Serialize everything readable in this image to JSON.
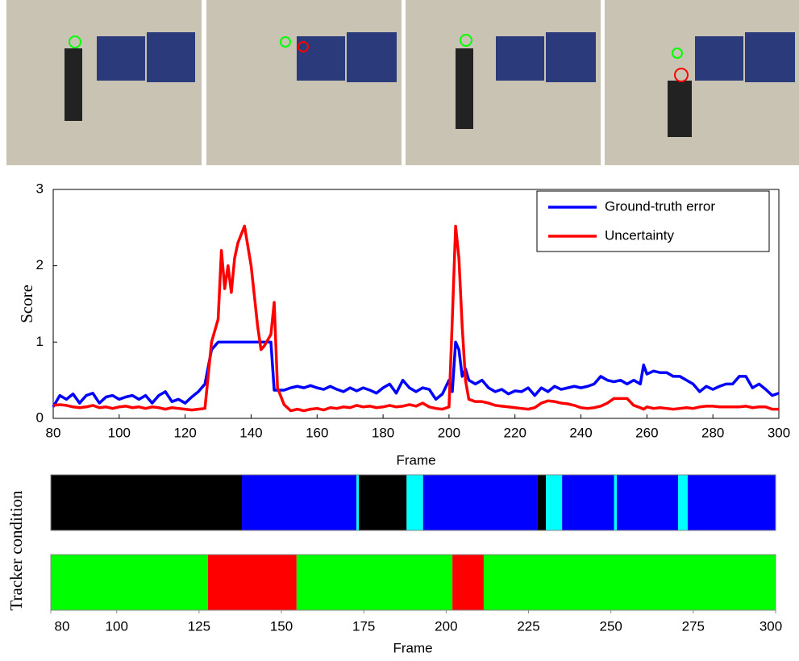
{
  "chart_data": [
    {
      "type": "line",
      "xlabel": "Frame",
      "ylabel": "Score",
      "x": [
        80,
        82,
        84,
        86,
        88,
        90,
        92,
        94,
        96,
        98,
        100,
        102,
        104,
        106,
        108,
        110,
        112,
        114,
        116,
        118,
        120,
        122,
        124,
        126,
        128,
        130,
        131,
        132,
        133,
        134,
        135,
        136,
        138,
        140,
        142,
        143,
        144,
        146,
        147,
        148,
        150,
        152,
        154,
        156,
        158,
        160,
        162,
        164,
        166,
        168,
        170,
        172,
        174,
        176,
        178,
        180,
        182,
        184,
        186,
        188,
        190,
        192,
        194,
        196,
        198,
        200,
        201,
        202,
        203,
        204,
        205,
        206,
        208,
        210,
        212,
        214,
        216,
        218,
        220,
        222,
        224,
        226,
        228,
        230,
        232,
        234,
        236,
        238,
        240,
        242,
        244,
        246,
        248,
        250,
        252,
        254,
        256,
        258,
        259,
        260,
        262,
        264,
        266,
        268,
        270,
        272,
        274,
        276,
        278,
        280,
        282,
        284,
        286,
        288,
        290,
        292,
        294,
        296,
        298,
        300
      ],
      "series": [
        {
          "name": "Ground-truth error",
          "color": "#0000ff",
          "values": [
            0.15,
            0.3,
            0.25,
            0.32,
            0.2,
            0.3,
            0.33,
            0.2,
            0.28,
            0.3,
            0.25,
            0.28,
            0.3,
            0.25,
            0.3,
            0.2,
            0.3,
            0.35,
            0.22,
            0.25,
            0.2,
            0.28,
            0.35,
            0.45,
            0.9,
            1.0,
            1.0,
            1.0,
            1.0,
            1.0,
            1.0,
            1.0,
            1.0,
            1.0,
            1.0,
            1.0,
            1.0,
            1.0,
            0.37,
            0.37,
            0.37,
            0.4,
            0.42,
            0.4,
            0.43,
            0.4,
            0.38,
            0.42,
            0.38,
            0.35,
            0.4,
            0.36,
            0.4,
            0.37,
            0.33,
            0.4,
            0.45,
            0.33,
            0.5,
            0.4,
            0.35,
            0.4,
            0.38,
            0.25,
            0.32,
            0.5,
            0.35,
            1.0,
            0.9,
            0.55,
            0.65,
            0.5,
            0.45,
            0.5,
            0.4,
            0.35,
            0.38,
            0.32,
            0.36,
            0.35,
            0.4,
            0.3,
            0.4,
            0.35,
            0.42,
            0.38,
            0.4,
            0.42,
            0.4,
            0.42,
            0.45,
            0.55,
            0.5,
            0.48,
            0.5,
            0.45,
            0.5,
            0.45,
            0.7,
            0.58,
            0.62,
            0.6,
            0.6,
            0.55,
            0.55,
            0.5,
            0.45,
            0.35,
            0.42,
            0.38,
            0.42,
            0.45,
            0.45,
            0.55,
            0.55,
            0.4,
            0.45,
            0.38,
            0.3,
            0.33
          ]
        },
        {
          "name": "Uncertainty",
          "color": "#ff0000",
          "values": [
            0.17,
            0.18,
            0.17,
            0.15,
            0.14,
            0.15,
            0.17,
            0.14,
            0.15,
            0.13,
            0.15,
            0.16,
            0.14,
            0.15,
            0.13,
            0.15,
            0.14,
            0.12,
            0.14,
            0.13,
            0.12,
            0.11,
            0.12,
            0.13,
            1.0,
            1.3,
            2.2,
            1.7,
            2.0,
            1.65,
            2.1,
            2.3,
            2.52,
            2.0,
            1.2,
            0.9,
            0.95,
            1.1,
            1.52,
            0.4,
            0.18,
            0.1,
            0.12,
            0.1,
            0.12,
            0.13,
            0.11,
            0.14,
            0.13,
            0.15,
            0.14,
            0.17,
            0.15,
            0.16,
            0.14,
            0.15,
            0.17,
            0.15,
            0.16,
            0.18,
            0.16,
            0.2,
            0.15,
            0.13,
            0.12,
            0.15,
            1.3,
            2.52,
            2.1,
            1.2,
            0.5,
            0.25,
            0.22,
            0.22,
            0.2,
            0.17,
            0.16,
            0.15,
            0.14,
            0.13,
            0.12,
            0.14,
            0.2,
            0.23,
            0.22,
            0.2,
            0.19,
            0.17,
            0.14,
            0.13,
            0.14,
            0.16,
            0.2,
            0.26,
            0.26,
            0.26,
            0.17,
            0.14,
            0.12,
            0.15,
            0.13,
            0.14,
            0.13,
            0.12,
            0.13,
            0.14,
            0.13,
            0.15,
            0.16,
            0.16,
            0.15,
            0.15,
            0.15,
            0.15,
            0.16,
            0.14,
            0.15,
            0.15,
            0.12,
            0.12
          ]
        }
      ],
      "xlim": [
        80,
        300
      ],
      "xticks": [
        80,
        100,
        120,
        140,
        160,
        180,
        200,
        220,
        240,
        260,
        280,
        300
      ],
      "ylim": [
        0,
        3
      ],
      "yticks": [
        0,
        1,
        2,
        3
      ],
      "legend": "upper right"
    },
    {
      "type": "broken-bar",
      "xlabel": "Frame",
      "ylabel": "Tracker condition",
      "xlim": [
        80,
        300
      ],
      "xticks": [
        80,
        100,
        125,
        150,
        175,
        200,
        225,
        250,
        275,
        300
      ],
      "rows": [
        {
          "segments": [
            {
              "start": 80,
              "end": 138,
              "color": "#000000"
            },
            {
              "start": 138,
              "end": 172.8,
              "color": "#0000ff"
            },
            {
              "start": 172.8,
              "end": 173.5,
              "color": "#00ffff"
            },
            {
              "start": 173.5,
              "end": 188,
              "color": "#000000"
            },
            {
              "start": 188,
              "end": 193,
              "color": "#00ffff"
            },
            {
              "start": 193,
              "end": 227.8,
              "color": "#0000ff"
            },
            {
              "start": 227.8,
              "end": 230.3,
              "color": "#000000"
            },
            {
              "start": 230.3,
              "end": 235.2,
              "color": "#00ffff"
            },
            {
              "start": 235.2,
              "end": 251,
              "color": "#0000ff"
            },
            {
              "start": 251,
              "end": 251.8,
              "color": "#00ffff"
            },
            {
              "start": 251.8,
              "end": 270.4,
              "color": "#0000ff"
            },
            {
              "start": 270.4,
              "end": 273.3,
              "color": "#00ffff"
            },
            {
              "start": 273.3,
              "end": 300,
              "color": "#0000ff"
            }
          ]
        },
        {
          "segments": [
            {
              "start": 80,
              "end": 127.7,
              "color": "#00ff00"
            },
            {
              "start": 127.7,
              "end": 154.6,
              "color": "#ff0000"
            },
            {
              "start": 154.6,
              "end": 201.9,
              "color": "#00ff00"
            },
            {
              "start": 201.9,
              "end": 211.4,
              "color": "#ff0000"
            },
            {
              "start": 211.4,
              "end": 300,
              "color": "#00ff00"
            }
          ]
        }
      ]
    }
  ]
}
